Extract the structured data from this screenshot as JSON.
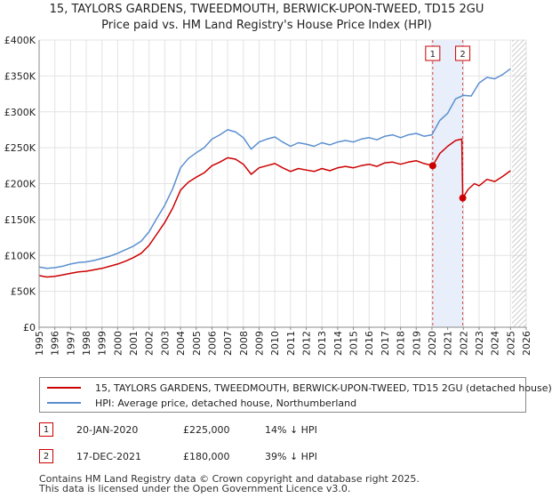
{
  "title_line1": "15, TAYLORS GARDENS, TWEEDMOUTH, BERWICK-UPON-TWEED, TD15 2GU",
  "title_line2": "Price paid vs. HM Land Registry's House Price Index (HPI)",
  "colors": {
    "hpi": "#5b8fd0",
    "price": "#cc0000",
    "band": "#e8eefa",
    "hatch": "#bbbbbb",
    "grid": "#e3e3e3"
  },
  "chart_data": {
    "type": "line",
    "xlim": [
      1995,
      2026
    ],
    "ylim": [
      0,
      400000
    ],
    "y_ticks": [
      0,
      50000,
      100000,
      150000,
      200000,
      250000,
      300000,
      350000,
      400000
    ],
    "y_tick_labels": [
      "£0",
      "£50K",
      "£100K",
      "£150K",
      "£200K",
      "£250K",
      "£300K",
      "£350K",
      "£400K"
    ],
    "x_ticks": [
      1995,
      1996,
      1997,
      1998,
      1999,
      2000,
      2001,
      2002,
      2003,
      2004,
      2005,
      2006,
      2007,
      2008,
      2009,
      2010,
      2011,
      2012,
      2013,
      2014,
      2015,
      2016,
      2017,
      2018,
      2019,
      2020,
      2021,
      2022,
      2023,
      2024,
      2025,
      2026
    ],
    "x_tick_labels": [
      "1995",
      "1996",
      "1997",
      "1998",
      "1999",
      "2000",
      "2001",
      "2002",
      "2003",
      "2004",
      "2005",
      "2006",
      "2007",
      "2008",
      "2009",
      "2010",
      "2011",
      "2012",
      "2013",
      "2014",
      "2015",
      "2016",
      "2017",
      "2018",
      "2019",
      "2020",
      "2021",
      "2022",
      "2023",
      "2024",
      "2025",
      "2026"
    ],
    "highlight_band": [
      2020.05,
      2021.96
    ],
    "forecast_start": 2025.1,
    "series": [
      {
        "name": "HPI: Average price, detached house, Northumberland",
        "color": "#5b8fd0",
        "x": [
          1995,
          1995.5,
          1996,
          1996.5,
          1997,
          1997.5,
          1998,
          1998.5,
          1999,
          1999.5,
          2000,
          2000.5,
          2001,
          2001.5,
          2002,
          2002.5,
          2003,
          2003.5,
          2004,
          2004.5,
          2005,
          2005.5,
          2006,
          2006.5,
          2007,
          2007.5,
          2008,
          2008.5,
          2009,
          2009.5,
          2010,
          2010.5,
          2011,
          2011.5,
          2012,
          2012.5,
          2013,
          2013.5,
          2014,
          2014.5,
          2015,
          2015.5,
          2016,
          2016.5,
          2017,
          2017.5,
          2018,
          2018.5,
          2019,
          2019.5,
          2020,
          2020.5,
          2021,
          2021.5,
          2022,
          2022.5,
          2023,
          2023.5,
          2024,
          2024.5,
          2025
        ],
        "values": [
          84000,
          82000,
          83000,
          85000,
          88000,
          90000,
          91000,
          93000,
          96000,
          99000,
          103000,
          108000,
          113000,
          120000,
          133000,
          152000,
          170000,
          193000,
          222000,
          235000,
          243000,
          250000,
          262000,
          268000,
          275000,
          272000,
          264000,
          248000,
          258000,
          262000,
          265000,
          258000,
          252000,
          257000,
          255000,
          252000,
          257000,
          254000,
          258000,
          260000,
          258000,
          262000,
          264000,
          261000,
          266000,
          268000,
          264000,
          268000,
          270000,
          266000,
          268000,
          288000,
          298000,
          318000,
          323000,
          322000,
          340000,
          348000,
          346000,
          352000,
          360000
        ]
      },
      {
        "name": "15, TAYLORS GARDENS, TWEEDMOUTH, BERWICK-UPON-TWEED, TD15 2GU (detached house)",
        "color": "#cc0000",
        "x": [
          1995,
          1995.5,
          1996,
          1996.5,
          1997,
          1997.5,
          1998,
          1998.5,
          1999,
          1999.5,
          2000,
          2000.5,
          2001,
          2001.5,
          2002,
          2002.5,
          2003,
          2003.5,
          2004,
          2004.5,
          2005,
          2005.5,
          2006,
          2006.5,
          2007,
          2007.5,
          2008,
          2008.5,
          2009,
          2009.5,
          2010,
          2010.5,
          2011,
          2011.5,
          2012,
          2012.5,
          2013,
          2013.5,
          2014,
          2014.5,
          2015,
          2015.5,
          2016,
          2016.5,
          2017,
          2017.5,
          2018,
          2018.5,
          2019,
          2019.5,
          2020.05,
          2020.5,
          2021,
          2021.5,
          2021.9,
          2021.96,
          2022.3,
          2022.7,
          2023,
          2023.5,
          2024,
          2024.5,
          2025
        ],
        "values": [
          72000,
          70000,
          71000,
          73000,
          75000,
          77000,
          78000,
          80000,
          82000,
          85000,
          88000,
          92000,
          97000,
          103000,
          114000,
          130000,
          146000,
          166000,
          191000,
          202000,
          209000,
          215000,
          225000,
          230000,
          236000,
          234000,
          227000,
          213000,
          222000,
          225000,
          228000,
          222000,
          217000,
          221000,
          219000,
          217000,
          221000,
          218000,
          222000,
          224000,
          222000,
          225000,
          227000,
          224000,
          229000,
          230000,
          227000,
          230000,
          232000,
          228000,
          225000,
          242000,
          252000,
          260000,
          262000,
          180000,
          192000,
          200000,
          197000,
          206000,
          203000,
          210000,
          218000
        ]
      }
    ],
    "markers": [
      {
        "id": "1",
        "x": 2020.05,
        "y": 225000
      },
      {
        "id": "2",
        "x": 2021.96,
        "y": 180000
      }
    ]
  },
  "legend": {
    "price_label": "15, TAYLORS GARDENS, TWEEDMOUTH, BERWICK-UPON-TWEED, TD15 2GU (detached house)",
    "hpi_label": "HPI: Average price, detached house, Northumberland"
  },
  "transactions": [
    {
      "id": "1",
      "date": "20-JAN-2020",
      "price": "£225,000",
      "hpi": "14% ↓ HPI"
    },
    {
      "id": "2",
      "date": "17-DEC-2021",
      "price": "£180,000",
      "hpi": "39% ↓ HPI"
    }
  ],
  "footer": {
    "line1": "Contains HM Land Registry data © Crown copyright and database right 2025.",
    "line2": "This data is licensed under the Open Government Licence v3.0."
  }
}
